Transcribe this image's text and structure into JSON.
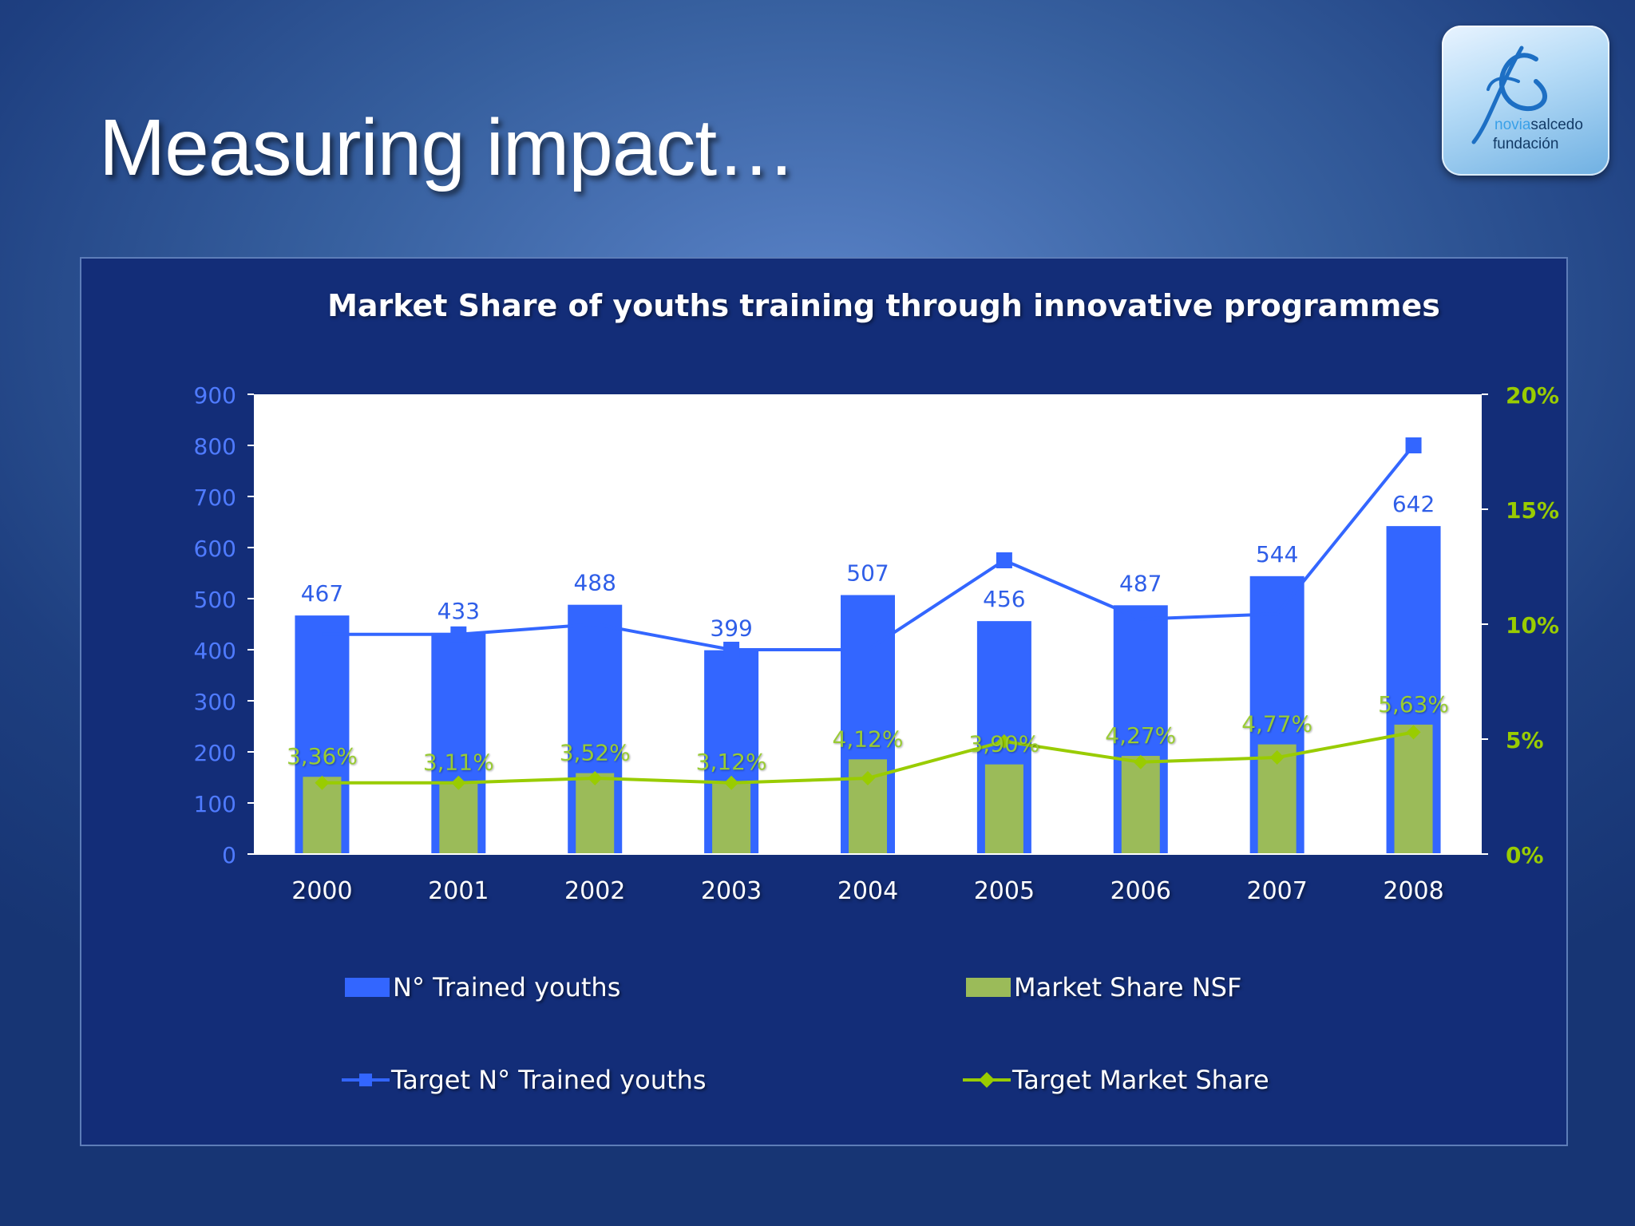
{
  "slide": {
    "title": "Measuring impact…"
  },
  "logo": {
    "word1_a": "novia",
    "word1_b": "salcedo",
    "word2": "fundación"
  },
  "colors": {
    "bar_trained": "#3366ff",
    "bar_market_share": "#9bbb59",
    "line_target_trained": "#3366ff",
    "line_target_share": "#99cc00",
    "label_share": "#99cc33",
    "left_axis": "#4f7bff",
    "right_axis": "#99cc00"
  },
  "chart_data": {
    "type": "bar",
    "title": "Market Share of youths training through innovative programmes",
    "categories": [
      "2000",
      "2001",
      "2002",
      "2003",
      "2004",
      "2005",
      "2006",
      "2007",
      "2008"
    ],
    "y_left": {
      "min": 0,
      "max": 900,
      "ticks": [
        "0",
        "100",
        "200",
        "300",
        "400",
        "500",
        "600",
        "700",
        "800",
        "900"
      ]
    },
    "y_right": {
      "min": 0,
      "max": 20,
      "unit": "%",
      "ticks": [
        "0%",
        "5%",
        "10%",
        "15%",
        "20%"
      ]
    },
    "grid": false,
    "legend_position": "bottom",
    "series": [
      {
        "name": "N° Trained youths",
        "kind": "bar",
        "axis": "left",
        "values": [
          467,
          433,
          488,
          399,
          507,
          456,
          487,
          544,
          642
        ],
        "labels": [
          "467",
          "433",
          "488",
          "399",
          "507",
          "456",
          "487",
          "544",
          "642"
        ]
      },
      {
        "name": "Market Share NSF",
        "kind": "bar",
        "axis": "right",
        "values": [
          3.36,
          3.11,
          3.52,
          3.12,
          4.12,
          3.9,
          4.27,
          4.77,
          5.63
        ],
        "labels": [
          "3,36%",
          "3,11%",
          "3,52%",
          "3,12%",
          "4,12%",
          "3,90%",
          "4,27%",
          "4,77%",
          "5,63%"
        ]
      },
      {
        "name": "Target N° Trained youths",
        "kind": "line",
        "marker": "square",
        "axis": "left",
        "values": [
          430,
          430,
          450,
          400,
          400,
          575,
          460,
          470,
          800
        ]
      },
      {
        "name": "Target Market Share",
        "kind": "line",
        "marker": "diamond",
        "axis": "right",
        "values": [
          3.1,
          3.1,
          3.3,
          3.1,
          3.3,
          4.9,
          4.0,
          4.2,
          5.3
        ]
      }
    ]
  }
}
